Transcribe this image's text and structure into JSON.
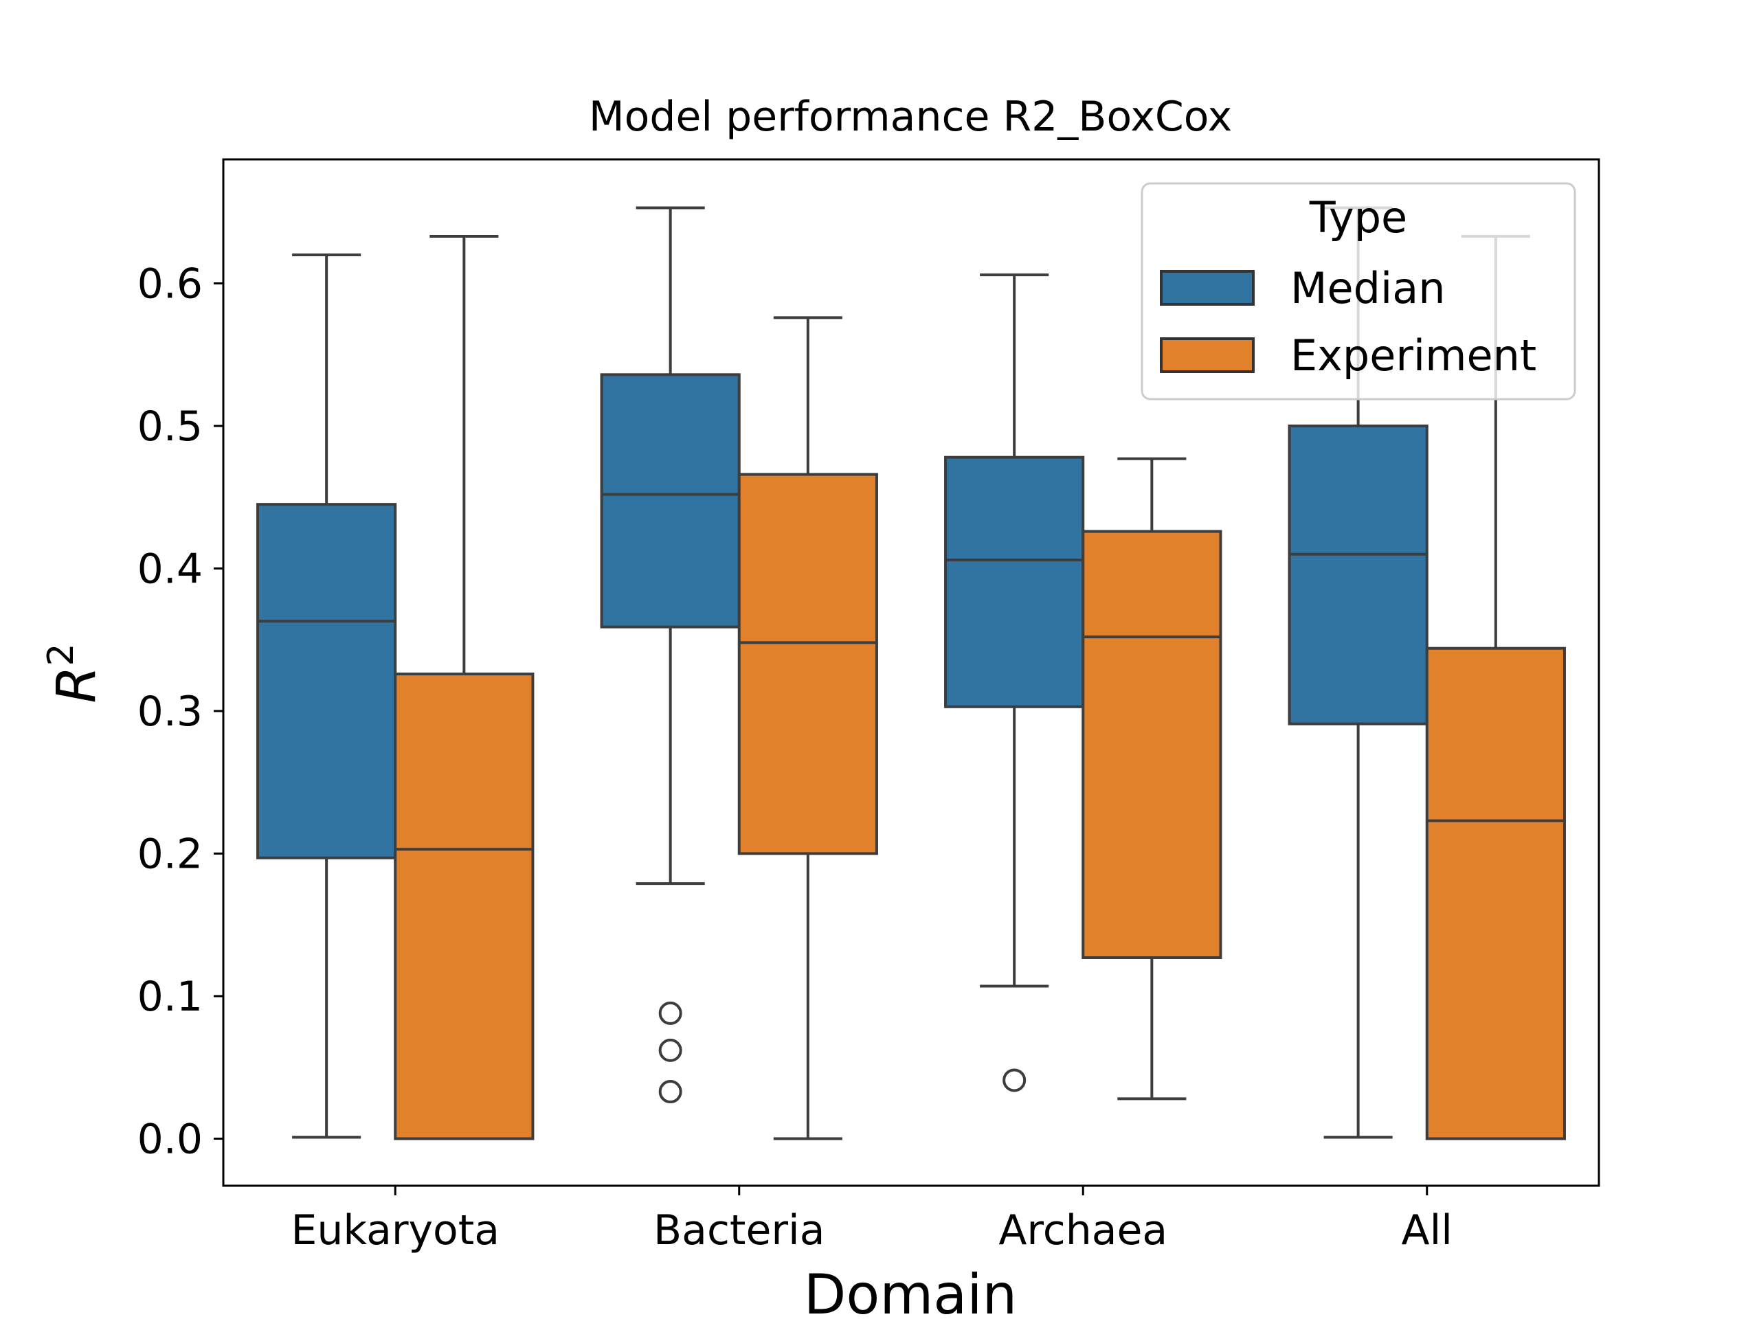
{
  "chart_data": {
    "type": "box",
    "title": "Model performance R2_BoxCox",
    "xlabel": "Domain",
    "ylabel_base": "R",
    "ylabel_sup": "2",
    "ylim": [
      -0.033,
      0.687
    ],
    "yticks": [
      0.0,
      0.1,
      0.2,
      0.3,
      0.4,
      0.5,
      0.6
    ],
    "ytick_labels": [
      "0.0",
      "0.1",
      "0.2",
      "0.3",
      "0.4",
      "0.5",
      "0.6"
    ],
    "categories": [
      "Eukaryota",
      "Bacteria",
      "Archaea",
      "All"
    ],
    "legend": {
      "title": "Type",
      "location": "upper-right"
    },
    "series": [
      {
        "name": "Median",
        "color": "#3274a1",
        "boxes": [
          {
            "whisker_low": 0.001,
            "q1": 0.197,
            "median": 0.363,
            "q3": 0.445,
            "whisker_high": 0.62,
            "outliers": []
          },
          {
            "whisker_low": 0.179,
            "q1": 0.359,
            "median": 0.452,
            "q3": 0.536,
            "whisker_high": 0.653,
            "outliers": [
              0.088,
              0.062,
              0.033
            ]
          },
          {
            "whisker_low": 0.107,
            "q1": 0.303,
            "median": 0.406,
            "q3": 0.478,
            "whisker_high": 0.606,
            "outliers": [
              0.041
            ]
          },
          {
            "whisker_low": 0.001,
            "q1": 0.291,
            "median": 0.41,
            "q3": 0.5,
            "whisker_high": 0.653,
            "outliers": []
          }
        ]
      },
      {
        "name": "Experiment",
        "color": "#e1812c",
        "boxes": [
          {
            "whisker_low": 0.0,
            "q1": 0.0,
            "median": 0.203,
            "q3": 0.326,
            "whisker_high": 0.633,
            "outliers": []
          },
          {
            "whisker_low": 0.0,
            "q1": 0.2,
            "median": 0.348,
            "q3": 0.466,
            "whisker_high": 0.576,
            "outliers": []
          },
          {
            "whisker_low": 0.028,
            "q1": 0.127,
            "median": 0.352,
            "q3": 0.426,
            "whisker_high": 0.477,
            "outliers": []
          },
          {
            "whisker_low": 0.0,
            "q1": 0.0,
            "median": 0.223,
            "q3": 0.344,
            "whisker_high": 0.633,
            "outliers": []
          }
        ]
      }
    ]
  }
}
